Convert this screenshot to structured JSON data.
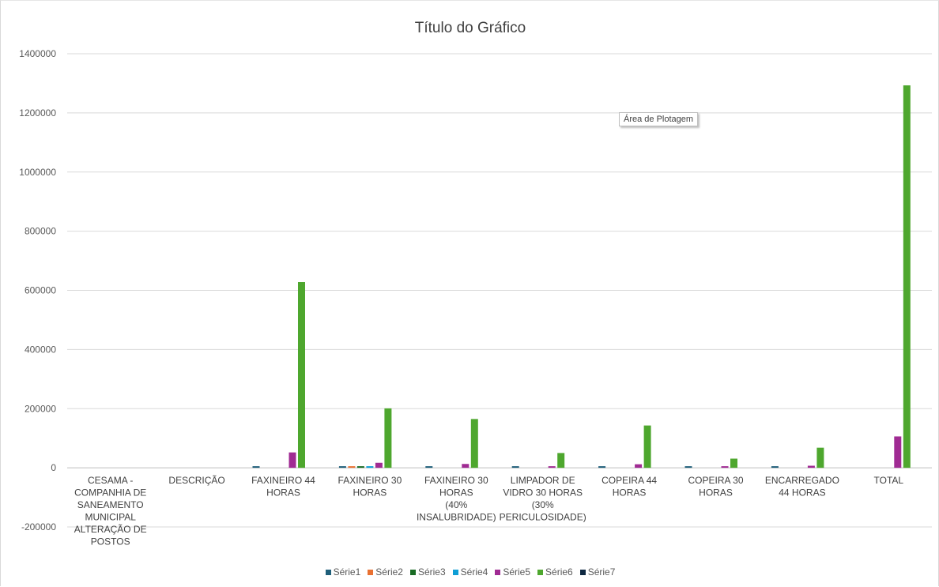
{
  "chart_data": {
    "type": "bar",
    "title": "Título do Gráfico",
    "ylim": [
      -200000,
      1400000
    ],
    "yticks": [
      -200000,
      0,
      200000,
      400000,
      600000,
      800000,
      1000000,
      1200000,
      1400000
    ],
    "ytick_labels": [
      "-200000",
      "0",
      "200000",
      "400000",
      "600000",
      "800000",
      "1000000",
      "1200000",
      "1400000"
    ],
    "grid": true,
    "legend_position": "bottom",
    "categories": [
      [
        "CESAMA -",
        "COMPANHIA DE",
        "SANEAMENTO",
        "MUNICIPAL",
        "ALTERAÇÃO DE",
        "POSTOS"
      ],
      [
        "DESCRIÇÃO"
      ],
      [
        "FAXINEIRO 44",
        "HORAS"
      ],
      [
        "FAXINEIRO 30",
        "HORAS"
      ],
      [
        "FAXINEIRO 30",
        "HORAS",
        "(40%",
        "INSALUBRIDADE)"
      ],
      [
        "LIMPADOR DE",
        "VIDRO 30 HORAS",
        "(30%",
        "PERICULOSIDADE)"
      ],
      [
        "COPEIRA 44",
        "HORAS"
      ],
      [
        "COPEIRA 30",
        "HORAS"
      ],
      [
        "ENCARREGADO",
        "44 HORAS"
      ],
      [
        "TOTAL"
      ]
    ],
    "series": [
      {
        "name": "Série1",
        "color": "#1f5f7a",
        "values": [
          0,
          0,
          5,
          4,
          4,
          4,
          4,
          3,
          2,
          0
        ]
      },
      {
        "name": "Série2",
        "color": "#e97132",
        "values": [
          0,
          0,
          0,
          3500,
          0,
          0,
          0,
          0,
          0,
          0
        ]
      },
      {
        "name": "Série3",
        "color": "#196b24",
        "values": [
          0,
          0,
          0,
          3500,
          0,
          0,
          0,
          0,
          0,
          0
        ]
      },
      {
        "name": "Série4",
        "color": "#0f9ed5",
        "values": [
          0,
          0,
          0,
          3500,
          0,
          0,
          0,
          0,
          0,
          0
        ]
      },
      {
        "name": "Série5",
        "color": "#a02b93",
        "values": [
          0,
          0,
          52000,
          17000,
          13000,
          3500,
          12000,
          3500,
          7000,
          106000
        ]
      },
      {
        "name": "Série6",
        "color": "#4ea72e",
        "values": [
          0,
          0,
          628000,
          201000,
          165000,
          50000,
          143000,
          31000,
          68000,
          1293000
        ]
      },
      {
        "name": "Série7",
        "color": "#0e2841",
        "values": [
          0,
          0,
          0,
          0,
          0,
          0,
          0,
          0,
          0,
          0
        ]
      }
    ]
  },
  "tooltip": {
    "text": "Área de Plotagem"
  }
}
